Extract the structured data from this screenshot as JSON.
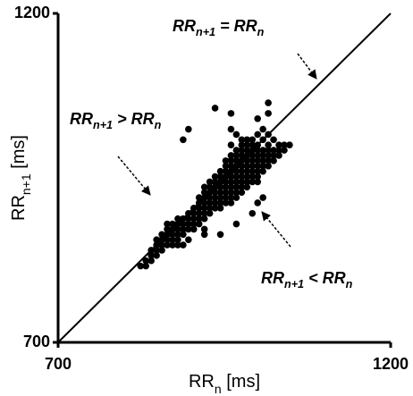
{
  "chart_data": {
    "type": "scatter",
    "annotations": [
      [
        {
          "t": "RR"
        },
        {
          "sub": "n+1"
        },
        {
          "t": " = RR"
        },
        {
          "sub": "n"
        }
      ],
      [
        {
          "t": "RR"
        },
        {
          "sub": "n+1"
        },
        {
          "t": " > RR"
        },
        {
          "sub": "n"
        }
      ],
      [
        {
          "t": "RR"
        },
        {
          "sub": "n+1"
        },
        {
          "t": " < RR"
        },
        {
          "sub": "n"
        }
      ]
    ],
    "x_label": [
      {
        "t": "RR"
      },
      {
        "sub": "n"
      },
      {
        "t": " [ms]"
      }
    ],
    "y_label": [
      {
        "t": "RR"
      },
      {
        "sub": "n+1"
      },
      {
        "t": " [ms]"
      }
    ],
    "xlim": [
      700,
      1200
    ],
    "ylim": [
      700,
      1200
    ],
    "xticks": [
      700,
      1200
    ],
    "yticks": [
      700,
      1200
    ],
    "identity_line": true,
    "series": [
      {
        "color": "#000000",
        "x": [
          824,
          832,
          832,
          840,
          840,
          848,
          840,
          848,
          856,
          848,
          856,
          864,
          872,
          880,
          888,
          848,
          856,
          864,
          872,
          880,
          896,
          856,
          864,
          872,
          880,
          888,
          920,
          944,
          864,
          872,
          880,
          888,
          896,
          904,
          920,
          864,
          872,
          880,
          888,
          896,
          904,
          912,
          968,
          880,
          888,
          896,
          904,
          912,
          920,
          896,
          904,
          912,
          920,
          928,
          992,
          904,
          912,
          920,
          928,
          936,
          944,
          912,
          920,
          928,
          936,
          944,
          952,
          960,
          1000,
          912,
          920,
          928,
          936,
          944,
          952,
          960,
          968,
          1008,
          920,
          928,
          936,
          944,
          952,
          960,
          968,
          976,
          920,
          928,
          936,
          944,
          952,
          960,
          968,
          976,
          984,
          928,
          936,
          944,
          952,
          960,
          968,
          976,
          984,
          992,
          1000,
          936,
          944,
          952,
          960,
          968,
          976,
          984,
          992,
          1000,
          944,
          952,
          960,
          968,
          976,
          984,
          992,
          1000,
          1008,
          952,
          960,
          968,
          976,
          984,
          992,
          1000,
          1008,
          1016,
          952,
          960,
          968,
          976,
          984,
          992,
          1000,
          1008,
          1016,
          1024,
          960,
          968,
          976,
          984,
          992,
          1000,
          1008,
          1016,
          1024,
          1032,
          968,
          976,
          984,
          992,
          1000,
          1008,
          1016,
          1024,
          1032,
          1040,
          960,
          976,
          984,
          992,
          1000,
          1016,
          1032,
          1040,
          1048,
          888,
          976,
          984,
          992,
          1008,
          1024,
          968,
          1000,
          1016,
          896,
          960,
          1008,
          1000,
          960,
          1016,
          936,
          1016
        ],
        "values": [
          816,
          816,
          824,
          824,
          832,
          832,
          840,
          840,
          840,
          848,
          848,
          848,
          848,
          848,
          848,
          856,
          856,
          856,
          856,
          856,
          856,
          864,
          864,
          864,
          864,
          864,
          864,
          864,
          872,
          872,
          872,
          872,
          872,
          872,
          872,
          880,
          880,
          880,
          880,
          880,
          880,
          880,
          880,
          888,
          888,
          888,
          888,
          888,
          888,
          896,
          896,
          896,
          896,
          896,
          896,
          904,
          904,
          904,
          904,
          904,
          904,
          912,
          912,
          912,
          912,
          912,
          912,
          912,
          912,
          920,
          920,
          920,
          920,
          920,
          920,
          920,
          920,
          920,
          928,
          928,
          928,
          928,
          928,
          928,
          928,
          928,
          936,
          936,
          936,
          936,
          936,
          936,
          936,
          936,
          936,
          944,
          944,
          944,
          944,
          944,
          944,
          944,
          944,
          944,
          944,
          952,
          952,
          952,
          952,
          952,
          952,
          952,
          952,
          952,
          960,
          960,
          960,
          960,
          960,
          960,
          960,
          960,
          960,
          968,
          968,
          968,
          968,
          968,
          968,
          968,
          968,
          968,
          976,
          976,
          976,
          976,
          976,
          976,
          976,
          976,
          976,
          976,
          984,
          984,
          984,
          984,
          984,
          984,
          984,
          984,
          984,
          984,
          992,
          992,
          992,
          992,
          992,
          992,
          992,
          992,
          992,
          992,
          1000,
          1000,
          1000,
          1000,
          1000,
          1000,
          1000,
          1000,
          1000,
          1008,
          1008,
          1008,
          1008,
          1008,
          1008,
          1016,
          1016,
          1016,
          1024,
          1024,
          1024,
          1040,
          1048,
          1048,
          1056,
          1064
        ]
      }
    ]
  }
}
